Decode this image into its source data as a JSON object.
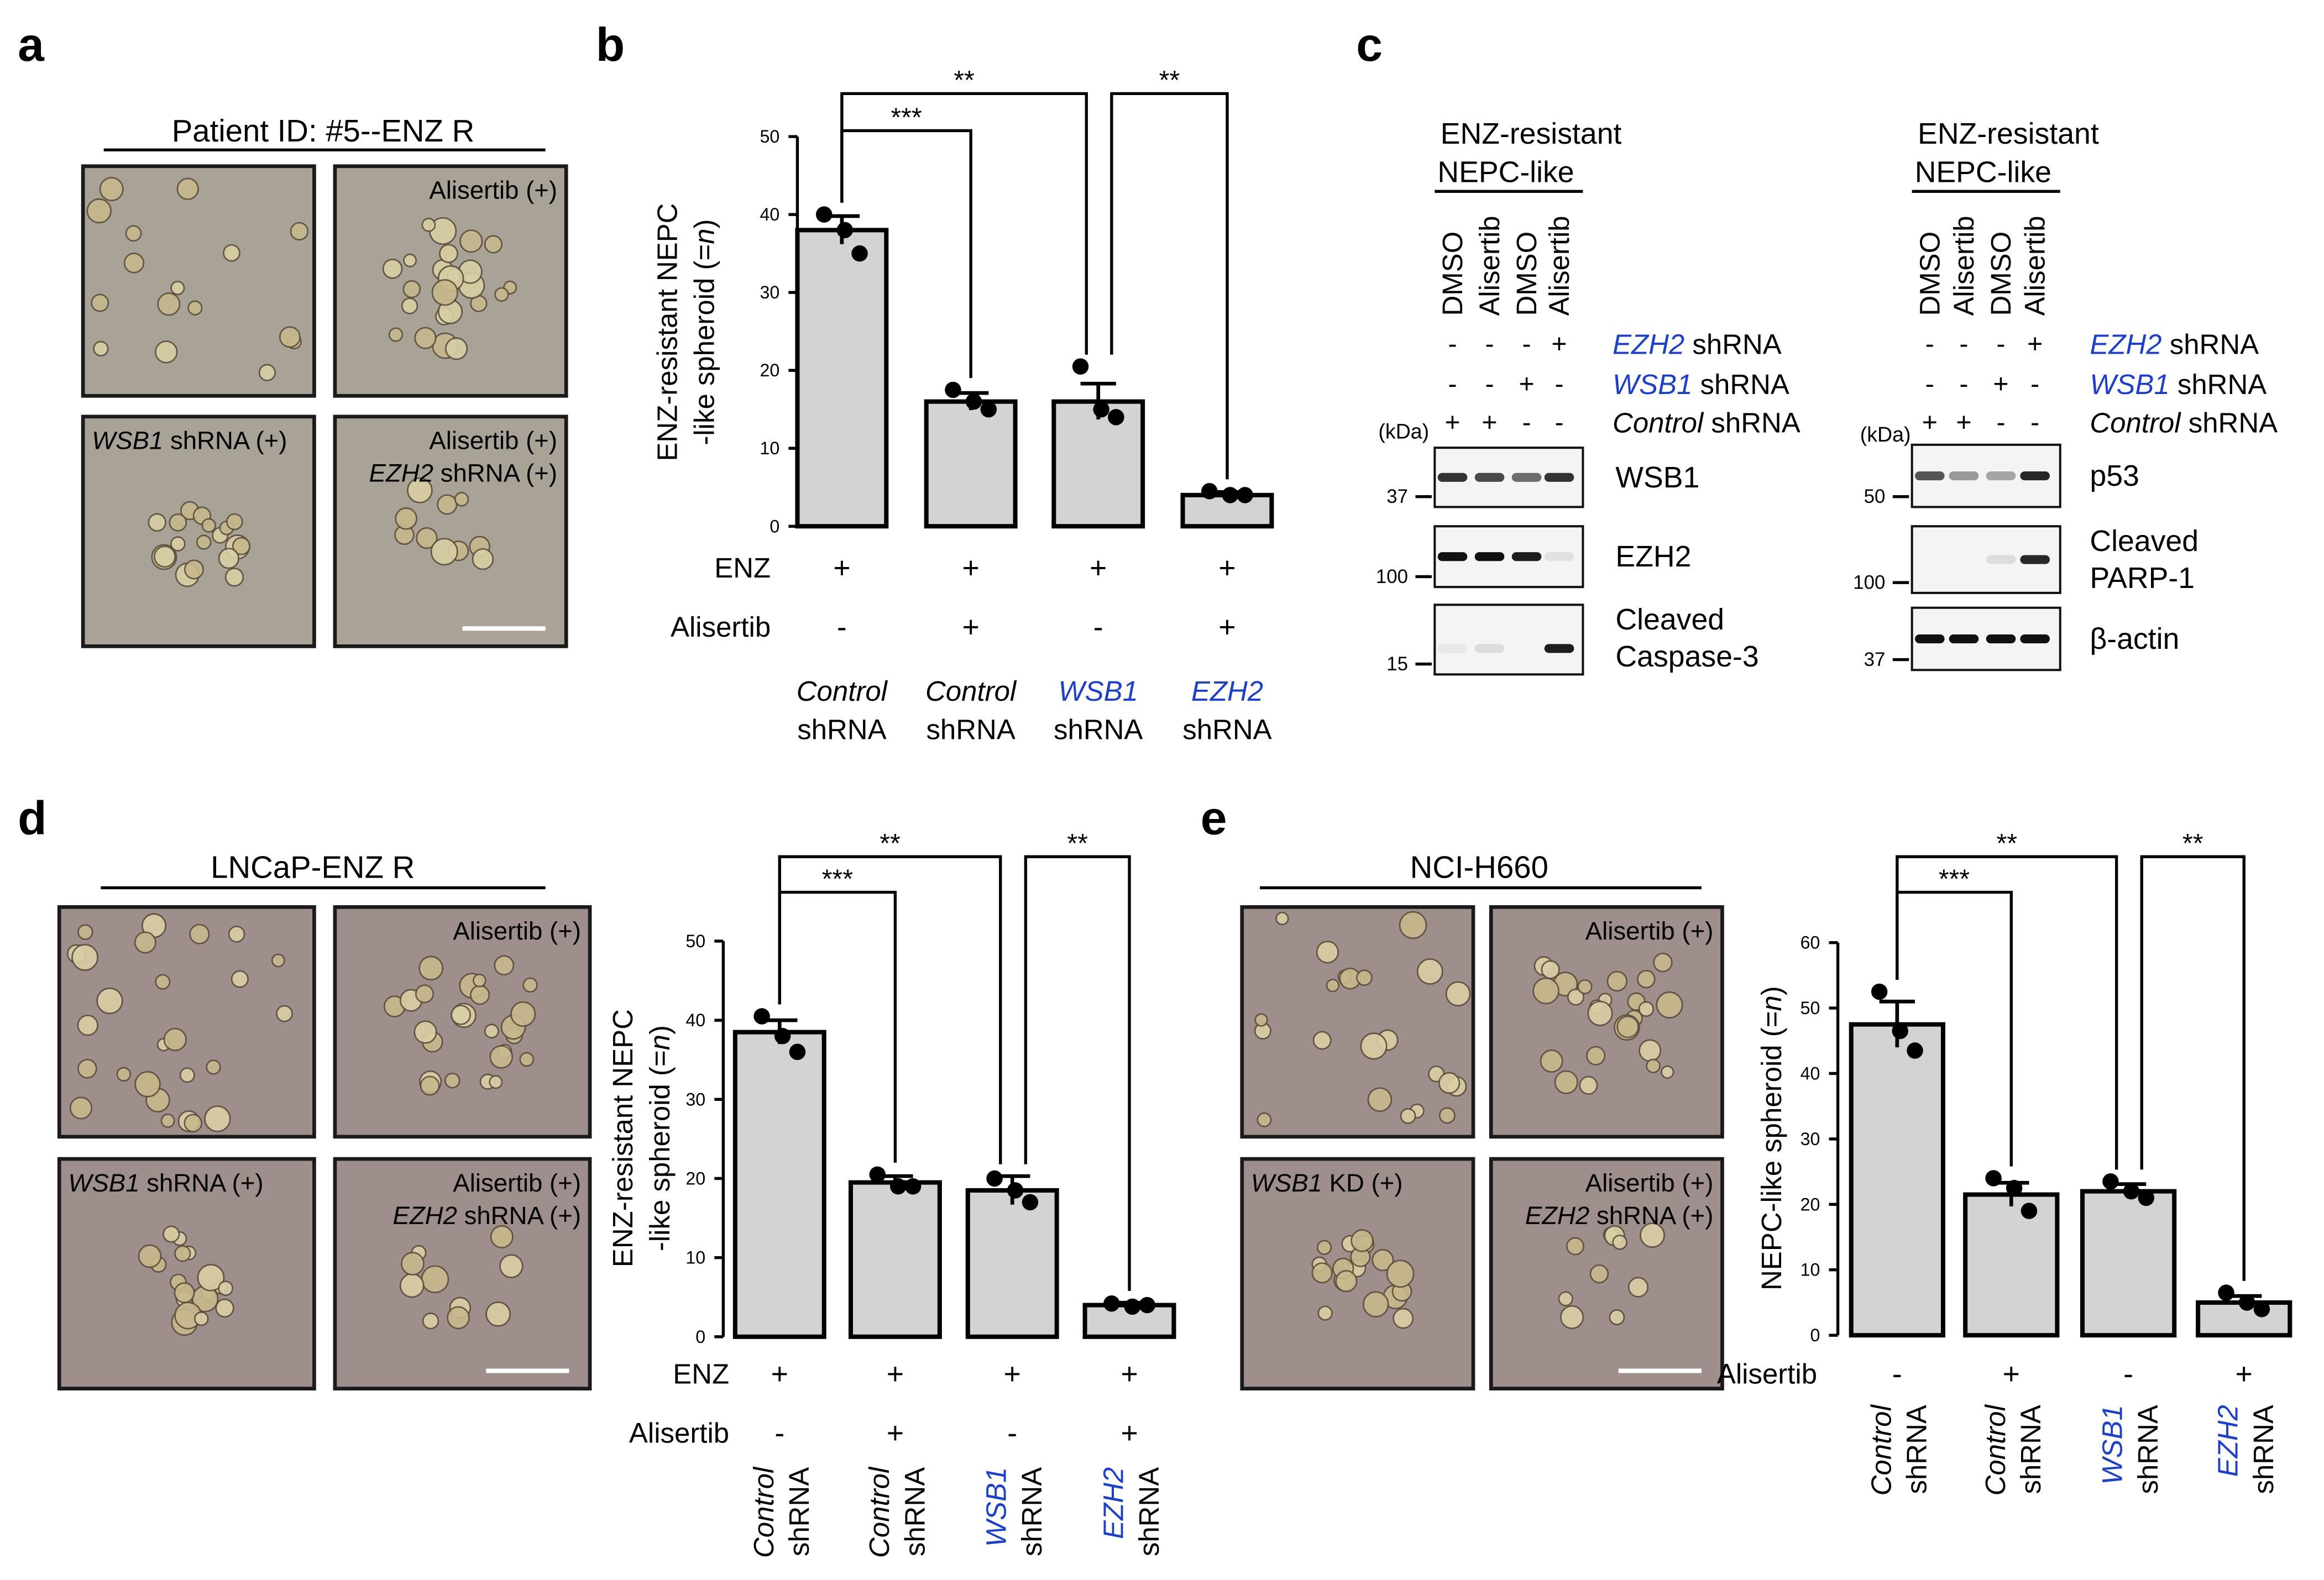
{
  "micrographs": [
    {
      "panel": "a",
      "title": "Patient ID: #5--ENZ R",
      "images": [
        [],
        [
          [
            {
              "t": "Alisertib (+)"
            }
          ]
        ],
        [
          [
            {
              "t": "WSB1",
              "i": true
            },
            {
              "t": " shRNA (+)"
            }
          ]
        ],
        [
          [
            {
              "t": "Alisertib (+)"
            }
          ],
          [
            {
              "t": "EZH2",
              "i": true
            },
            {
              "t": " shRNA (+)"
            }
          ]
        ]
      ]
    },
    {
      "panel": "d",
      "title": "LNCaP-ENZ R",
      "images": [
        [],
        [
          [
            {
              "t": "Alisertib (+)"
            }
          ]
        ],
        [
          [
            {
              "t": "WSB1",
              "i": true
            },
            {
              "t": " shRNA (+)"
            }
          ]
        ],
        [
          [
            {
              "t": "Alisertib (+)"
            }
          ],
          [
            {
              "t": "EZH2",
              "i": true
            },
            {
              "t": " shRNA (+)"
            }
          ]
        ]
      ]
    },
    {
      "panel": "e",
      "title": "NCI-H660",
      "images": [
        [],
        [
          [
            {
              "t": "Alisertib (+)"
            }
          ]
        ],
        [
          [
            {
              "t": "WSB1",
              "i": true
            },
            {
              "t": " KD (+)"
            }
          ]
        ],
        [
          [
            {
              "t": "Alisertib (+)"
            }
          ],
          [
            {
              "t": "EZH2",
              "i": true
            },
            {
              "t": " shRNA (+)"
            }
          ]
        ]
      ]
    }
  ],
  "western": {
    "panel": "c",
    "groups": [
      {
        "header": [
          "ENZ-resistant",
          "NEPC-like"
        ],
        "lanes": [
          {
            "t": "DMSO"
          },
          {
            "t": "Alisertib",
            "c": "#e8191c"
          },
          {
            "t": "DMSO"
          },
          {
            "t": "Alisertib",
            "c": "#e8191c"
          }
        ],
        "conditions": [
          {
            "label": [
              {
                "t": "EZH2",
                "i": true,
                "c": "#1a3fd1"
              },
              {
                "t": " shRNA"
              }
            ],
            "signs": [
              "-",
              "-",
              "-",
              "+"
            ]
          },
          {
            "label": [
              {
                "t": "WSB1",
                "i": true,
                "c": "#1a3fd1"
              },
              {
                "t": " shRNA"
              }
            ],
            "signs": [
              "-",
              "-",
              "+",
              "-"
            ]
          },
          {
            "label": [
              {
                "t": "Control",
                "i": true
              },
              {
                "t": " shRNA"
              }
            ],
            "signs": [
              "+",
              "+",
              "-",
              "-"
            ]
          }
        ],
        "kda": "(kDa)",
        "blots": [
          {
            "protein": [
              "WSB1"
            ],
            "marker": "37"
          },
          {
            "protein": [
              "EZH2"
            ],
            "marker": "100"
          },
          {
            "protein": [
              "Cleaved",
              "Caspase-3"
            ],
            "marker": "15"
          }
        ]
      },
      {
        "header": [
          "ENZ-resistant",
          "NEPC-like"
        ],
        "lanes": [
          {
            "t": "DMSO"
          },
          {
            "t": "Alisertib",
            "c": "#e8191c"
          },
          {
            "t": "DMSO"
          },
          {
            "t": "Alisertib",
            "c": "#e8191c"
          }
        ],
        "conditions": [
          {
            "label": [
              {
                "t": "EZH2",
                "i": true,
                "c": "#1a3fd1"
              },
              {
                "t": " shRNA"
              }
            ],
            "signs": [
              "-",
              "-",
              "-",
              "+"
            ]
          },
          {
            "label": [
              {
                "t": "WSB1",
                "i": true,
                "c": "#1a3fd1"
              },
              {
                "t": " shRNA"
              }
            ],
            "signs": [
              "-",
              "-",
              "+",
              "-"
            ]
          },
          {
            "label": [
              {
                "t": "Control",
                "i": true
              },
              {
                "t": " shRNA"
              }
            ],
            "signs": [
              "+",
              "+",
              "-",
              "-"
            ]
          }
        ],
        "kda": "(kDa)",
        "blots": [
          {
            "protein": [
              "p53"
            ],
            "marker": "50"
          },
          {
            "protein": [
              "Cleaved",
              "PARP-1"
            ],
            "marker": "100"
          },
          {
            "protein": [
              "β-actin"
            ],
            "marker": "37"
          }
        ]
      }
    ]
  },
  "chart_data": [
    {
      "type": "bar",
      "panel": "b",
      "ylabel": [
        [
          {
            "t": "ENZ-resistant NEPC"
          }
        ],
        [
          {
            "t": "-like spheroid (="
          },
          {
            "t": "n",
            "i": true
          },
          {
            "t": ")"
          }
        ]
      ],
      "ylim": [
        0,
        50
      ],
      "yticks": [
        0,
        10,
        20,
        30,
        40,
        50
      ],
      "color": "#d3d3d3",
      "categories": [
        [
          [
            {
              "t": "Control",
              "i": true
            }
          ],
          [
            {
              "t": "shRNA"
            }
          ]
        ],
        [
          [
            {
              "t": "Control",
              "i": true
            }
          ],
          [
            {
              "t": "shRNA"
            }
          ]
        ],
        [
          [
            {
              "t": "WSB1",
              "i": true,
              "c": "#1a3fd1"
            }
          ],
          [
            {
              "t": "shRNA"
            }
          ]
        ],
        [
          [
            {
              "t": "EZH2",
              "i": true,
              "c": "#1a3fd1"
            }
          ],
          [
            {
              "t": "shRNA"
            }
          ]
        ]
      ],
      "values": [
        38,
        16,
        16,
        4
      ],
      "errors": [
        1.8,
        1.1,
        2.3,
        0.4
      ],
      "points": [
        [
          40,
          38,
          35
        ],
        [
          17.5,
          16,
          15
        ],
        [
          20.5,
          15,
          14
        ],
        [
          4.5,
          4,
          4
        ]
      ],
      "rows": [
        {
          "label": "ENZ",
          "color": "#000000",
          "signs": [
            "+",
            "+",
            "+",
            "+"
          ]
        },
        {
          "label": "Alisertib",
          "color": "#e8191c",
          "signs": [
            "-",
            "+",
            "-",
            "+"
          ]
        }
      ],
      "significance": [
        {
          "pair": [
            0,
            1
          ],
          "label": "***"
        },
        {
          "pair": [
            0,
            2
          ],
          "label": "**"
        },
        {
          "pair": [
            2,
            3
          ],
          "label": "**"
        }
      ]
    },
    {
      "type": "bar",
      "ylabel": [
        [
          {
            "t": "ENZ-resistant NEPC"
          }
        ],
        [
          {
            "t": "-like spheroid (="
          },
          {
            "t": "n",
            "i": true
          },
          {
            "t": ")"
          }
        ]
      ],
      "ylim": [
        0,
        50
      ],
      "yticks": [
        0,
        10,
        20,
        30,
        40,
        50
      ],
      "color": "#d3d3d3",
      "categories": [
        [
          [
            {
              "t": "Control",
              "i": true
            }
          ],
          [
            {
              "t": "shRNA"
            }
          ]
        ],
        [
          [
            {
              "t": "Control",
              "i": true
            }
          ],
          [
            {
              "t": "shRNA"
            }
          ]
        ],
        [
          [
            {
              "t": "WSB1",
              "i": true,
              "c": "#1a3fd1"
            }
          ],
          [
            {
              "t": "shRNA"
            }
          ]
        ],
        [
          [
            {
              "t": "EZH2",
              "i": true,
              "c": "#1a3fd1"
            }
          ],
          [
            {
              "t": "shRNA"
            }
          ]
        ]
      ],
      "values": [
        38.5,
        19.5,
        18.5,
        4
      ],
      "errors": [
        1.5,
        0.8,
        1.8,
        0.3
      ],
      "points": [
        [
          40.5,
          38,
          36
        ],
        [
          20.5,
          19,
          19
        ],
        [
          20,
          18.5,
          17
        ],
        [
          4.2,
          3.8,
          4
        ]
      ],
      "rows": [
        {
          "label": "ENZ",
          "color": "#000000",
          "signs": [
            "+",
            "+",
            "+",
            "+"
          ]
        },
        {
          "label": "Alisertib",
          "color": "#e8191c",
          "signs": [
            "-",
            "+",
            "-",
            "+"
          ]
        }
      ],
      "significance": [
        {
          "pair": [
            0,
            1
          ],
          "label": "***"
        },
        {
          "pair": [
            0,
            2
          ],
          "label": "**"
        },
        {
          "pair": [
            2,
            3
          ],
          "label": "**"
        }
      ]
    },
    {
      "type": "bar",
      "ylabel": [
        [
          {
            "t": "NEPC-like spheroid (="
          },
          {
            "t": "n",
            "i": true
          },
          {
            "t": ")"
          }
        ]
      ],
      "ylim": [
        0,
        60
      ],
      "yticks": [
        0,
        10,
        20,
        30,
        40,
        50,
        60
      ],
      "color": "#d3d3d3",
      "categories": [
        [
          [
            {
              "t": "Control",
              "i": true
            }
          ],
          [
            {
              "t": "shRNA"
            }
          ]
        ],
        [
          [
            {
              "t": "Control",
              "i": true
            }
          ],
          [
            {
              "t": "shRNA"
            }
          ]
        ],
        [
          [
            {
              "t": "WSB1",
              "i": true,
              "c": "#1a3fd1"
            }
          ],
          [
            {
              "t": "shRNA"
            }
          ]
        ],
        [
          [
            {
              "t": "EZH2",
              "i": true,
              "c": "#1a3fd1"
            }
          ],
          [
            {
              "t": "shRNA"
            }
          ]
        ]
      ],
      "values": [
        47.5,
        21.5,
        22,
        5
      ],
      "errors": [
        3.5,
        1.8,
        1.1,
        1
      ],
      "points": [
        [
          52.5,
          46.5,
          43.5
        ],
        [
          24,
          22.5,
          19
        ],
        [
          23.5,
          22,
          21
        ],
        [
          6.5,
          5,
          4
        ]
      ],
      "rows": [
        {
          "label": "Alisertib",
          "color": "#e8191c",
          "signs": [
            "-",
            "+",
            "-",
            "+"
          ]
        }
      ],
      "significance": [
        {
          "pair": [
            0,
            1
          ],
          "label": "***"
        },
        {
          "pair": [
            0,
            2
          ],
          "label": "**"
        },
        {
          "pair": [
            2,
            3
          ],
          "label": "**"
        }
      ]
    }
  ]
}
